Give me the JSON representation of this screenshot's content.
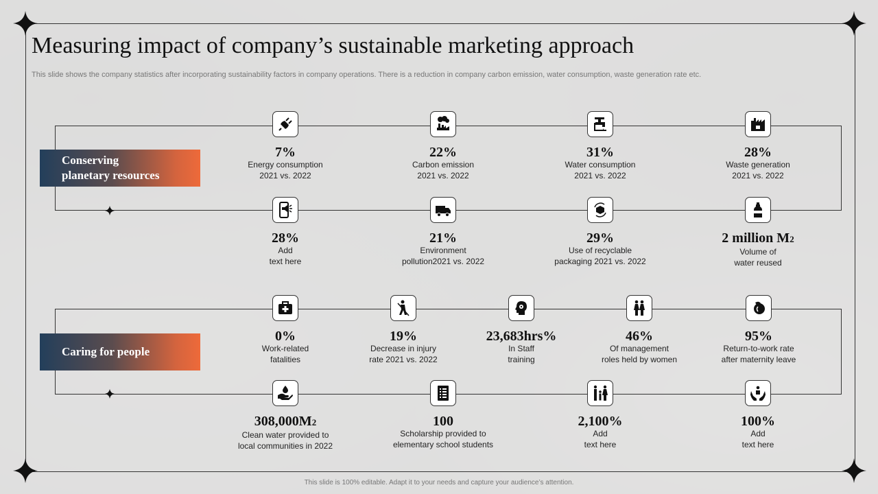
{
  "title": "Measuring impact of company’s sustainable marketing approach",
  "subtitle": "This slide shows the company statistics after incorporating sustainability factors in company operations. There is a reduction in company carbon emission, water consumption, waste generation rate etc.",
  "footer": "This slide is 100% editable. Adapt it to your needs and capture your audience’s attention.",
  "colors": {
    "gradient_start": "#233f5b",
    "gradient_end": "#ee6a3a",
    "line": "#333333"
  },
  "sections": [
    {
      "label_line1": "Conserving",
      "label_line2": "planetary resources",
      "metrics": [
        {
          "icon": "plug-icon",
          "value": "7%",
          "desc1": "Energy consumption",
          "desc2": "2021 vs. 2022"
        },
        {
          "icon": "factory-pollution-icon",
          "value": "22%",
          "desc1": "Carbon emission",
          "desc2": "2021 vs. 2022"
        },
        {
          "icon": "water-tap-icon",
          "value": "31%",
          "desc1": "Water consumption",
          "desc2": "2021 vs. 2022"
        },
        {
          "icon": "waste-factory-icon",
          "value": "28%",
          "desc1": "Waste generation",
          "desc2": "2021 vs. 2022"
        },
        {
          "icon": "mobile-megaphone-icon",
          "value": "28%",
          "desc1": "Add",
          "desc2": "text here"
        },
        {
          "icon": "truck-icon",
          "value": "21%",
          "desc1": "Environment",
          "desc2": "pollution2021 vs. 2022"
        },
        {
          "icon": "recycle-box-icon",
          "value": "29%",
          "desc1": "Use of recyclable",
          "desc2": "packaging 2021 vs. 2022"
        },
        {
          "icon": "water-bottle-icon",
          "value": "2 million  M",
          "unit_sub": "2",
          "desc1": "Volume of",
          "desc2": "water reused"
        }
      ]
    },
    {
      "label_line1": "Caring for people",
      "label_line2": "",
      "metrics": [
        {
          "icon": "first-aid-kit-icon",
          "value": "0%",
          "desc1": "Work-related",
          "desc2": "fatalities"
        },
        {
          "icon": "worker-injury-icon",
          "value": "19%",
          "desc1": "Decrease in injury",
          "desc2": "rate 2021 vs. 2022"
        },
        {
          "icon": "staff-training-icon",
          "value": "23,683hrs%",
          "desc1": "In Staff",
          "desc2": "training"
        },
        {
          "icon": "women-icon",
          "value": "46%",
          "desc1": "Of management",
          "desc2": "roles held by women"
        },
        {
          "icon": "maternity-icon",
          "value": "95%",
          "desc1": "Return-to-work  rate",
          "desc2": "after maternity leave"
        },
        {
          "icon": "water-hand-icon",
          "value": "308,000M",
          "unit_sub": "2",
          "desc1": "Clean water provided  to",
          "desc2": "local communities in 2022"
        },
        {
          "icon": "scholarship-document-icon",
          "value": "100",
          "desc1": "Scholarship provided  to",
          "desc2": "elementary school students"
        },
        {
          "icon": "family-icon",
          "value": "2,100%",
          "desc1": "Add",
          "desc2": "text here"
        },
        {
          "icon": "care-hands-icon",
          "value": "100%",
          "desc1": "Add",
          "desc2": "text here"
        }
      ]
    }
  ]
}
